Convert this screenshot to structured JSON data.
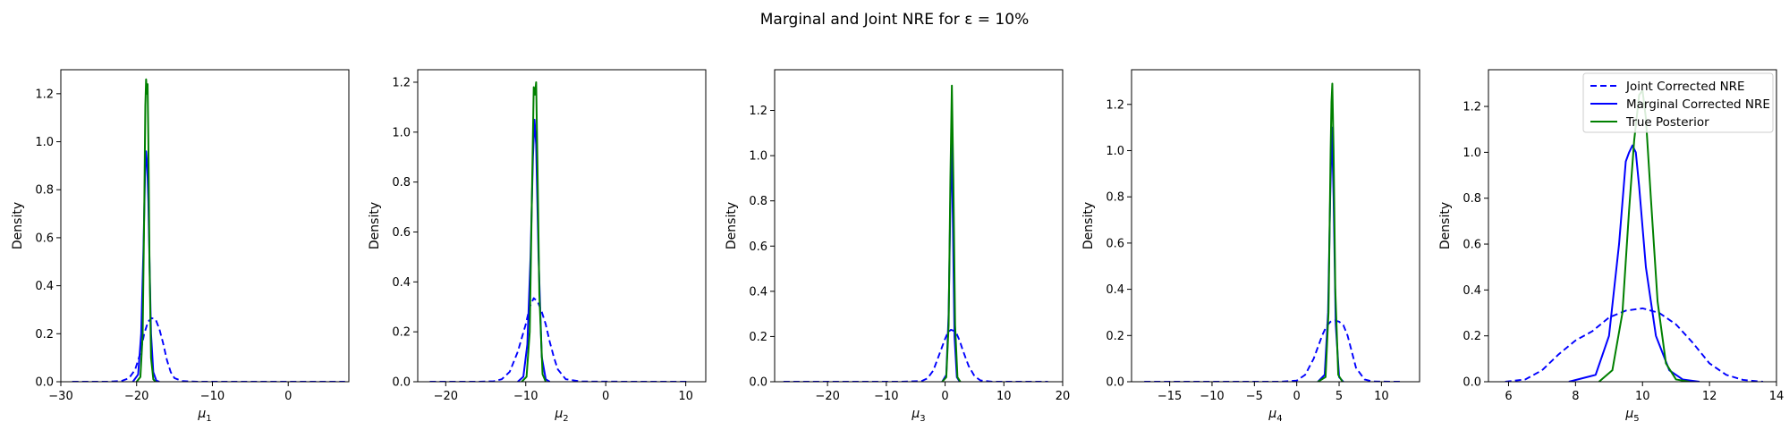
{
  "figure": {
    "title": "Marginal and Joint NRE for ε = 10%"
  },
  "legend": {
    "location": "upper right of last panel",
    "entries": [
      {
        "label": "Joint Corrected NRE",
        "color": "#0000ff",
        "style": "dashed"
      },
      {
        "label": "Marginal Corrected NRE",
        "color": "#0000ff",
        "style": "solid"
      },
      {
        "label": "True Posterior",
        "color": "#008000",
        "style": "solid"
      }
    ]
  },
  "chart_data": [
    {
      "type": "line",
      "ylabel": "Density",
      "xlabel_base": "μ",
      "xlabel_sub": "1",
      "xlim": [
        -30,
        8
      ],
      "ylim": [
        0,
        1.3
      ],
      "xticks": [
        -30,
        -20,
        -10,
        0
      ],
      "yticks": [
        0.0,
        0.2,
        0.4,
        0.6,
        0.8,
        1.0,
        1.2
      ],
      "grid": false,
      "series": [
        {
          "key": "joint",
          "color": "#0000ff",
          "style": "dashed",
          "x": [
            -28.5,
            -24,
            -22,
            -21,
            -20.2,
            -19.5,
            -19,
            -18.5,
            -18,
            -17.5,
            -17,
            -16.5,
            -16,
            -15.5,
            -15,
            -14,
            -12,
            -5,
            0,
            7.5
          ],
          "y": [
            0,
            0,
            0.003,
            0.015,
            0.05,
            0.12,
            0.2,
            0.25,
            0.265,
            0.26,
            0.22,
            0.16,
            0.09,
            0.04,
            0.015,
            0.003,
            0,
            0,
            0,
            0
          ]
        },
        {
          "key": "marginal",
          "color": "#0000ff",
          "style": "solid",
          "x": [
            -20.5,
            -19.8,
            -19.4,
            -19.1,
            -18.9,
            -18.75,
            -18.6,
            -18.45,
            -18.3,
            -18.1,
            -17.8,
            -17.4,
            -17
          ],
          "y": [
            0,
            0.03,
            0.2,
            0.55,
            0.85,
            0.96,
            0.9,
            0.75,
            0.5,
            0.2,
            0.04,
            0.005,
            0
          ]
        },
        {
          "key": "true",
          "color": "#008000",
          "style": "solid",
          "x": [
            -20,
            -19.5,
            -19.2,
            -19.0,
            -18.85,
            -18.75,
            -18.65,
            -18.55,
            -18.45,
            -18.3,
            -18.1,
            -17.8,
            -17.5
          ],
          "y": [
            0,
            0.02,
            0.2,
            0.7,
            1.15,
            1.26,
            1.2,
            1.24,
            1.0,
            0.5,
            0.1,
            0.01,
            0
          ]
        }
      ]
    },
    {
      "type": "line",
      "ylabel": "Density",
      "xlabel_base": "μ",
      "xlabel_sub": "2",
      "xlim": [
        -23.5,
        12.5
      ],
      "ylim": [
        0,
        1.25
      ],
      "xticks": [
        -20,
        -10,
        0,
        10
      ],
      "yticks": [
        0.0,
        0.2,
        0.4,
        0.6,
        0.8,
        1.0,
        1.2
      ],
      "grid": false,
      "series": [
        {
          "key": "joint",
          "color": "#0000ff",
          "style": "dashed",
          "x": [
            -22,
            -16,
            -14,
            -13,
            -12,
            -11,
            -10,
            -9.5,
            -9,
            -8.5,
            -8,
            -7.5,
            -7,
            -6.5,
            -6,
            -5,
            -3,
            5,
            10.5
          ],
          "y": [
            0,
            0,
            0.002,
            0.01,
            0.04,
            0.12,
            0.23,
            0.3,
            0.335,
            0.32,
            0.28,
            0.23,
            0.16,
            0.1,
            0.05,
            0.01,
            0.001,
            0,
            0
          ]
        },
        {
          "key": "marginal",
          "color": "#0000ff",
          "style": "solid",
          "x": [
            -11,
            -10.3,
            -9.8,
            -9.4,
            -9.1,
            -8.9,
            -8.7,
            -8.4,
            -8.0,
            -7.5,
            -7
          ],
          "y": [
            0,
            0.02,
            0.15,
            0.5,
            0.9,
            1.05,
            0.95,
            0.5,
            0.1,
            0.01,
            0
          ]
        },
        {
          "key": "true",
          "color": "#008000",
          "style": "solid",
          "x": [
            -10.5,
            -9.9,
            -9.5,
            -9.2,
            -9.0,
            -8.85,
            -8.7,
            -8.55,
            -8.3,
            -7.9,
            -7.5
          ],
          "y": [
            0,
            0.02,
            0.2,
            0.8,
            1.18,
            1.15,
            1.2,
            0.9,
            0.35,
            0.03,
            0
          ]
        }
      ]
    },
    {
      "type": "line",
      "ylabel": "Density",
      "xlabel_base": "μ",
      "xlabel_sub": "3",
      "xlim": [
        -29,
        20
      ],
      "ylim": [
        0,
        1.38
      ],
      "xticks": [
        -20,
        -10,
        0,
        10,
        20
      ],
      "yticks": [
        0.0,
        0.2,
        0.4,
        0.6,
        0.8,
        1.0,
        1.2
      ],
      "grid": false,
      "series": [
        {
          "key": "joint",
          "color": "#0000ff",
          "style": "dashed",
          "x": [
            -27.5,
            -8,
            -4,
            -3,
            -2,
            -1,
            0,
            0.5,
            1,
            1.5,
            2,
            2.5,
            3,
            4,
            5,
            6,
            8,
            17.5
          ],
          "y": [
            0,
            0,
            0.003,
            0.015,
            0.05,
            0.12,
            0.19,
            0.22,
            0.23,
            0.225,
            0.21,
            0.18,
            0.14,
            0.07,
            0.025,
            0.006,
            0,
            0
          ]
        },
        {
          "key": "marginal",
          "color": "#0000ff",
          "style": "solid",
          "x": [
            -0.5,
            0.2,
            0.6,
            0.9,
            1.1,
            1.3,
            1.6,
            2.0,
            2.5
          ],
          "y": [
            0,
            0.03,
            0.3,
            0.8,
            1.1,
            0.75,
            0.2,
            0.02,
            0
          ]
        },
        {
          "key": "true",
          "color": "#008000",
          "style": "solid",
          "x": [
            -0.5,
            0.2,
            0.6,
            0.9,
            1.15,
            1.4,
            1.7,
            2.1,
            2.6
          ],
          "y": [
            0,
            0.02,
            0.25,
            0.9,
            1.31,
            0.9,
            0.25,
            0.02,
            0
          ]
        }
      ]
    },
    {
      "type": "line",
      "ylabel": "Density",
      "xlabel_base": "μ",
      "xlabel_sub": "4",
      "xlim": [
        -19.5,
        14.5
      ],
      "ylim": [
        0,
        1.35
      ],
      "xticks": [
        -15,
        -10,
        -5,
        0,
        5,
        10
      ],
      "yticks": [
        0.0,
        0.2,
        0.4,
        0.6,
        0.8,
        1.0,
        1.2
      ],
      "grid": false,
      "series": [
        {
          "key": "joint",
          "color": "#0000ff",
          "style": "dashed",
          "x": [
            -18,
            -2,
            0,
            1,
            2,
            3,
            3.5,
            4,
            4.5,
            5,
            5.5,
            6,
            6.5,
            7,
            8,
            9,
            12.5
          ],
          "y": [
            0,
            0,
            0.005,
            0.03,
            0.1,
            0.2,
            0.24,
            0.26,
            0.265,
            0.26,
            0.245,
            0.2,
            0.13,
            0.06,
            0.01,
            0.001,
            0
          ]
        },
        {
          "key": "marginal",
          "color": "#0000ff",
          "style": "solid",
          "x": [
            2.5,
            3.3,
            3.7,
            3.95,
            4.15,
            4.35,
            4.6,
            5.0,
            5.5
          ],
          "y": [
            0,
            0.03,
            0.3,
            0.8,
            1.1,
            0.8,
            0.25,
            0.02,
            0
          ]
        },
        {
          "key": "true",
          "color": "#008000",
          "style": "solid",
          "x": [
            2.5,
            3.4,
            3.75,
            4.0,
            4.1,
            4.2,
            4.35,
            4.55,
            4.9,
            5.4
          ],
          "y": [
            0,
            0.02,
            0.3,
            1.0,
            1.21,
            1.29,
            1.0,
            0.4,
            0.03,
            0
          ]
        }
      ]
    },
    {
      "type": "line",
      "ylabel": "Density",
      "xlabel_base": "μ",
      "xlabel_sub": "5",
      "xlim": [
        5.4,
        14
      ],
      "ylim": [
        0,
        1.36
      ],
      "xticks": [
        6,
        8,
        10,
        12,
        14
      ],
      "yticks": [
        0.0,
        0.2,
        0.4,
        0.6,
        0.8,
        1.0,
        1.2
      ],
      "grid": false,
      "series": [
        {
          "key": "joint",
          "color": "#0000ff",
          "style": "dashed",
          "x": [
            5.9,
            6.5,
            7.0,
            7.5,
            8.0,
            8.5,
            9.0,
            9.5,
            10.0,
            10.5,
            11.0,
            11.5,
            12.0,
            12.5,
            13.0,
            13.6
          ],
          "y": [
            0,
            0.01,
            0.05,
            0.12,
            0.18,
            0.22,
            0.28,
            0.31,
            0.32,
            0.3,
            0.25,
            0.17,
            0.08,
            0.03,
            0.008,
            0
          ]
        },
        {
          "key": "marginal",
          "color": "#0000ff",
          "style": "solid",
          "x": [
            7.8,
            8.6,
            9.0,
            9.3,
            9.5,
            9.6,
            9.7,
            9.8,
            9.9,
            10.1,
            10.4,
            10.8,
            11.2,
            11.7
          ],
          "y": [
            0,
            0.03,
            0.2,
            0.6,
            0.96,
            1.0,
            1.03,
            1.0,
            0.85,
            0.5,
            0.2,
            0.05,
            0.01,
            0
          ]
        },
        {
          "key": "true",
          "color": "#008000",
          "style": "solid",
          "x": [
            8.7,
            9.1,
            9.4,
            9.6,
            9.75,
            9.9,
            10.0,
            10.1,
            10.25,
            10.45,
            10.7,
            11.0,
            11.4
          ],
          "y": [
            0,
            0.05,
            0.3,
            0.75,
            1.05,
            1.25,
            1.27,
            1.15,
            0.8,
            0.35,
            0.08,
            0.01,
            0
          ]
        }
      ]
    }
  ]
}
